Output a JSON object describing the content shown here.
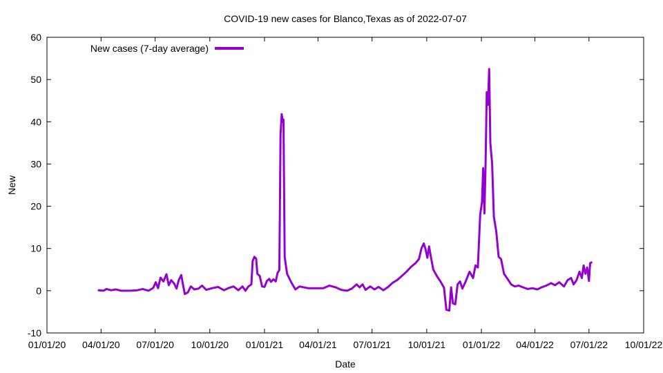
{
  "chart_data": {
    "type": "line",
    "title": "COVID-19 new cases for Blanco,Texas as of 2022-07-07",
    "xlabel": "Date",
    "ylabel": "New",
    "x_axis": {
      "start": "2020-01-01",
      "end": "2022-10-01",
      "ticks": [
        "2020-01-01",
        "2020-04-01",
        "2020-07-01",
        "2020-10-01",
        "2021-01-01",
        "2021-04-01",
        "2021-07-01",
        "2021-10-01",
        "2022-01-01",
        "2022-04-01",
        "2022-07-01",
        "2022-10-01"
      ],
      "tick_labels": [
        "01/01/20",
        "04/01/20",
        "07/01/20",
        "10/01/20",
        "01/01/21",
        "04/01/21",
        "07/01/21",
        "10/01/21",
        "01/01/22",
        "04/01/22",
        "07/01/22",
        "10/01/22"
      ]
    },
    "y_axis": {
      "min": -10,
      "max": 60,
      "ticks": [
        -10,
        0,
        10,
        20,
        30,
        40,
        50,
        60
      ],
      "tick_labels": [
        "-10",
        "0",
        "10",
        "20",
        "30",
        "40",
        "50",
        "60"
      ]
    },
    "grid": false,
    "legend_position": "top-left",
    "series": [
      {
        "name": "New cases (7-day average)",
        "color": "#9400d3",
        "points": [
          [
            "2020-03-28",
            0.1
          ],
          [
            "2020-04-05",
            0.0
          ],
          [
            "2020-04-10",
            0.4
          ],
          [
            "2020-04-18",
            0.1
          ],
          [
            "2020-04-26",
            0.3
          ],
          [
            "2020-05-05",
            0.0
          ],
          [
            "2020-05-20",
            0.0
          ],
          [
            "2020-06-01",
            0.1
          ],
          [
            "2020-06-10",
            0.4
          ],
          [
            "2020-06-20",
            0.0
          ],
          [
            "2020-06-28",
            0.7
          ],
          [
            "2020-07-02",
            2.0
          ],
          [
            "2020-07-06",
            0.6
          ],
          [
            "2020-07-10",
            3.1
          ],
          [
            "2020-07-15",
            2.2
          ],
          [
            "2020-07-20",
            3.9
          ],
          [
            "2020-07-24",
            1.3
          ],
          [
            "2020-07-28",
            2.5
          ],
          [
            "2020-08-02",
            1.7
          ],
          [
            "2020-08-06",
            0.5
          ],
          [
            "2020-08-10",
            2.6
          ],
          [
            "2020-08-14",
            3.7
          ],
          [
            "2020-08-17",
            1.3
          ],
          [
            "2020-08-20",
            -0.8
          ],
          [
            "2020-08-25",
            -0.4
          ],
          [
            "2020-08-30",
            1.0
          ],
          [
            "2020-09-05",
            0.3
          ],
          [
            "2020-09-12",
            0.5
          ],
          [
            "2020-09-18",
            1.2
          ],
          [
            "2020-09-25",
            0.2
          ],
          [
            "2020-10-05",
            0.6
          ],
          [
            "2020-10-15",
            0.9
          ],
          [
            "2020-10-25",
            0.1
          ],
          [
            "2020-11-01",
            0.6
          ],
          [
            "2020-11-10",
            1.0
          ],
          [
            "2020-11-18",
            0.1
          ],
          [
            "2020-11-25",
            1.0
          ],
          [
            "2020-11-30",
            0.0
          ],
          [
            "2020-12-05",
            1.0
          ],
          [
            "2020-12-10",
            1.5
          ],
          [
            "2020-12-12",
            7.0
          ],
          [
            "2020-12-15",
            8.0
          ],
          [
            "2020-12-18",
            7.6
          ],
          [
            "2020-12-20",
            4.0
          ],
          [
            "2020-12-24",
            3.5
          ],
          [
            "2020-12-28",
            1.0
          ],
          [
            "2021-01-01",
            0.9
          ],
          [
            "2021-01-05",
            2.3
          ],
          [
            "2021-01-09",
            2.8
          ],
          [
            "2021-01-12",
            2.1
          ],
          [
            "2021-01-16",
            2.7
          ],
          [
            "2021-01-20",
            2.2
          ],
          [
            "2021-01-23",
            4.2
          ],
          [
            "2021-01-26",
            4.9
          ],
          [
            "2021-01-28",
            37.0
          ],
          [
            "2021-01-30",
            41.8
          ],
          [
            "2021-02-01",
            40.0
          ],
          [
            "2021-02-02",
            40.5
          ],
          [
            "2021-02-04",
            8.0
          ],
          [
            "2021-02-08",
            4.0
          ],
          [
            "2021-02-15",
            2.0
          ],
          [
            "2021-02-22",
            0.3
          ],
          [
            "2021-03-01",
            1.0
          ],
          [
            "2021-03-15",
            0.6
          ],
          [
            "2021-03-30",
            0.6
          ],
          [
            "2021-04-10",
            0.6
          ],
          [
            "2021-04-20",
            1.2
          ],
          [
            "2021-05-01",
            0.8
          ],
          [
            "2021-05-10",
            0.2
          ],
          [
            "2021-05-20",
            0.0
          ],
          [
            "2021-05-28",
            0.5
          ],
          [
            "2021-06-05",
            1.5
          ],
          [
            "2021-06-10",
            0.8
          ],
          [
            "2021-06-15",
            1.5
          ],
          [
            "2021-06-20",
            0.2
          ],
          [
            "2021-06-28",
            1.0
          ],
          [
            "2021-07-05",
            0.3
          ],
          [
            "2021-07-12",
            0.9
          ],
          [
            "2021-07-20",
            0.1
          ],
          [
            "2021-07-28",
            0.9
          ],
          [
            "2021-08-05",
            1.9
          ],
          [
            "2021-08-12",
            2.5
          ],
          [
            "2021-08-20",
            3.5
          ],
          [
            "2021-08-28",
            4.5
          ],
          [
            "2021-09-05",
            5.7
          ],
          [
            "2021-09-12",
            6.5
          ],
          [
            "2021-09-18",
            7.5
          ],
          [
            "2021-09-22",
            10.0
          ],
          [
            "2021-09-26",
            11.2
          ],
          [
            "2021-09-29",
            9.8
          ],
          [
            "2021-10-02",
            7.8
          ],
          [
            "2021-10-05",
            10.5
          ],
          [
            "2021-10-08",
            8.0
          ],
          [
            "2021-10-12",
            5.0
          ],
          [
            "2021-10-18",
            3.5
          ],
          [
            "2021-10-25",
            2.0
          ],
          [
            "2021-10-30",
            0.7
          ],
          [
            "2021-11-03",
            -4.5
          ],
          [
            "2021-11-08",
            -4.7
          ],
          [
            "2021-11-11",
            0.8
          ],
          [
            "2021-11-14",
            -3.0
          ],
          [
            "2021-11-18",
            -3.2
          ],
          [
            "2021-11-22",
            1.5
          ],
          [
            "2021-11-26",
            2.2
          ],
          [
            "2021-11-30",
            0.5
          ],
          [
            "2021-12-05",
            2.0
          ],
          [
            "2021-12-12",
            4.5
          ],
          [
            "2021-12-18",
            3.0
          ],
          [
            "2021-12-22",
            6.0
          ],
          [
            "2021-12-26",
            5.5
          ],
          [
            "2021-12-30",
            18.0
          ],
          [
            "2022-01-02",
            21.0
          ],
          [
            "2022-01-04",
            29.0
          ],
          [
            "2022-01-06",
            18.3
          ],
          [
            "2022-01-08",
            30.0
          ],
          [
            "2022-01-10",
            47.0
          ],
          [
            "2022-01-12",
            44.0
          ],
          [
            "2022-01-14",
            52.5
          ],
          [
            "2022-01-16",
            35.0
          ],
          [
            "2022-01-19",
            30.0
          ],
          [
            "2022-01-22",
            17.5
          ],
          [
            "2022-01-26",
            14.0
          ],
          [
            "2022-01-30",
            8.0
          ],
          [
            "2022-02-03",
            7.5
          ],
          [
            "2022-02-08",
            4.0
          ],
          [
            "2022-02-14",
            2.8
          ],
          [
            "2022-02-20",
            1.5
          ],
          [
            "2022-02-26",
            1.0
          ],
          [
            "2022-03-05",
            1.2
          ],
          [
            "2022-03-12",
            0.8
          ],
          [
            "2022-03-20",
            0.4
          ],
          [
            "2022-03-28",
            0.6
          ],
          [
            "2022-04-05",
            0.3
          ],
          [
            "2022-04-12",
            0.8
          ],
          [
            "2022-04-20",
            1.2
          ],
          [
            "2022-04-28",
            1.8
          ],
          [
            "2022-05-05",
            1.3
          ],
          [
            "2022-05-12",
            2.0
          ],
          [
            "2022-05-20",
            1.0
          ],
          [
            "2022-05-26",
            2.5
          ],
          [
            "2022-06-01",
            3.0
          ],
          [
            "2022-06-05",
            1.5
          ],
          [
            "2022-06-10",
            2.5
          ],
          [
            "2022-06-15",
            4.5
          ],
          [
            "2022-06-19",
            3.0
          ],
          [
            "2022-06-22",
            6.0
          ],
          [
            "2022-06-25",
            4.0
          ],
          [
            "2022-06-28",
            5.5
          ],
          [
            "2022-07-01",
            2.3
          ],
          [
            "2022-07-03",
            6.5
          ],
          [
            "2022-07-05",
            6.7
          ]
        ]
      }
    ]
  }
}
